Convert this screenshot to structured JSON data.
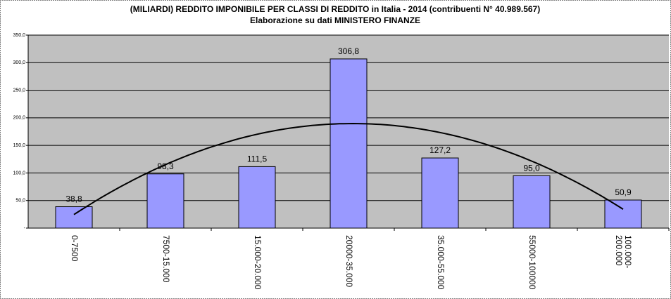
{
  "chart_data": {
    "type": "bar",
    "title": "(MILIARDI) REDDITO IMPONIBILE PER CLASSI DI REDDITO in Italia - 2014 (contribuenti N° 40.989.567)",
    "subtitle": "Elaborazione su dati MINISTERO FINANZE",
    "categories": [
      "0-7500",
      "7500-15.000",
      "15.000-20.000",
      "20000-35.000",
      "35.000-55.000",
      "55000-100000",
      "100.000-200.000"
    ],
    "values": [
      38.8,
      98.3,
      111.5,
      306.8,
      127.2,
      95.0,
      50.9
    ],
    "value_labels": [
      "38,8",
      "98,3",
      "111,5",
      "306,8",
      "127,2",
      "95,0",
      "50,9"
    ],
    "color": "#9999ff",
    "ylim": [
      0,
      350
    ],
    "yticks": [
      {
        "value": 0,
        "label": "-"
      },
      {
        "value": 50,
        "label": "50,0"
      },
      {
        "value": 100,
        "label": "100,0"
      },
      {
        "value": 150,
        "label": "150,0"
      },
      {
        "value": 200,
        "label": "200,0"
      },
      {
        "value": 250,
        "label": "250,0"
      },
      {
        "value": 300,
        "label": "300,0"
      },
      {
        "value": 350,
        "label": "350,0"
      }
    ],
    "grid": true,
    "trendline": "polynomial"
  }
}
